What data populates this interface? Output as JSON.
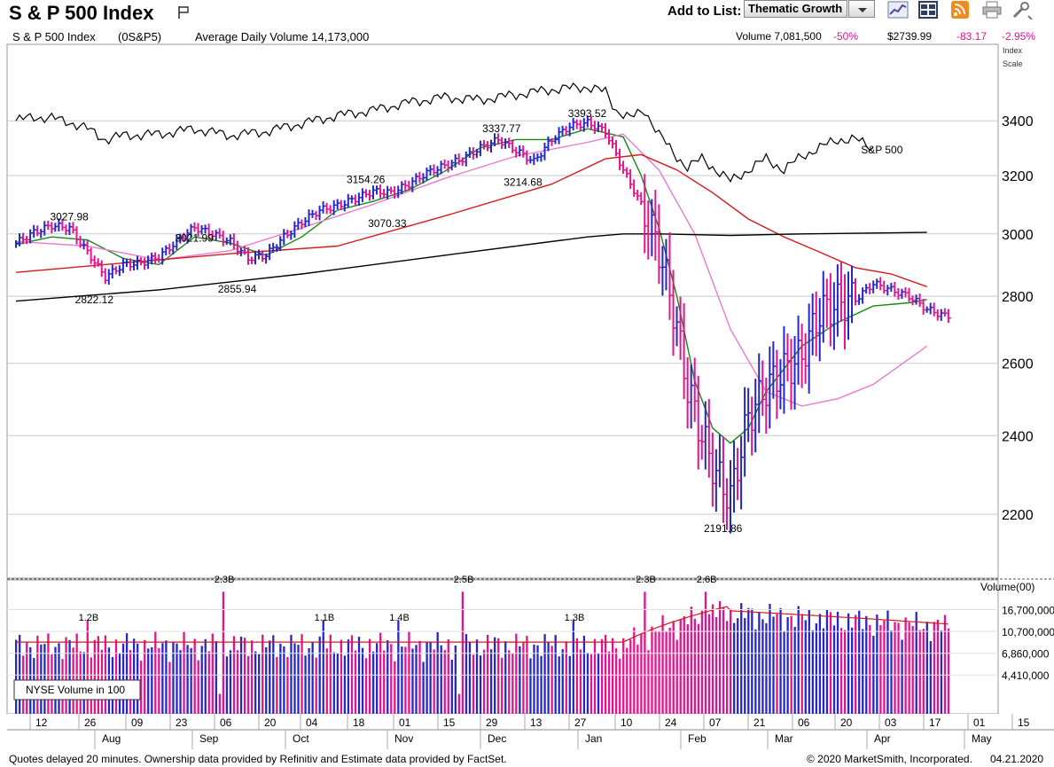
{
  "header": {
    "title": "S & P 500 Index",
    "add_to_list_label": "Add to List:",
    "list_selected": "Thematic Growth",
    "toolbar_icons": [
      "chart-icon",
      "grid-icon",
      "rss-icon",
      "print-icon",
      "tools-icon"
    ]
  },
  "info_bar": {
    "symbol": "S & P 500 Index",
    "ticker": "(0S&P5)",
    "avg_volume_text": "Average Daily Volume 14,173,000",
    "volume_text": "Volume 7,081,500",
    "volume_change": "-50%",
    "price": "$2739.99",
    "change": "-83.17",
    "change_pct": "-2.95%"
  },
  "footer": {
    "left_text": "Quotes delayed 20 minutes. Ownership data provided by Refinitiv and Estimate data provided by FactSet.",
    "copyright": "© 2020 MarketSmith, Incorporated.",
    "date": "04.21.2020"
  },
  "colors": {
    "up": "#2626c6",
    "down": "#e0148c",
    "ma10": "#138a13",
    "ma21": "#e87ad0",
    "ma50": "#d41a1a",
    "ma200": "#000000",
    "grid": "#c8c8c8"
  },
  "chart_data": [
    {
      "type": "candlestick",
      "title": "S & P 500 Index",
      "yaxis_scale": "log",
      "yaxis_label": "Index Scale",
      "ylim": [
        2050,
        3700
      ],
      "yticks": [
        2200,
        2400,
        2600,
        2800,
        3000,
        3200,
        3400
      ],
      "x_month_labels": [
        "Aug",
        "Sep",
        "Oct",
        "Nov",
        "Dec",
        "Jan",
        "Feb",
        "Mar",
        "Apr",
        "May"
      ],
      "x_day_labels": [
        "12",
        "26",
        "09",
        "23",
        "06",
        "20",
        "04",
        "18",
        "01",
        "15",
        "29",
        "13",
        "27",
        "10",
        "24",
        "07",
        "21",
        "06",
        "20",
        "03",
        "17",
        "01",
        "15"
      ],
      "price_series": {
        "x": [
          0,
          5,
          10,
          15,
          20,
          25,
          30,
          35,
          40,
          45,
          50,
          55,
          60,
          65,
          70,
          75,
          80,
          85,
          90,
          95,
          100,
          105,
          110,
          115,
          120,
          125,
          130,
          135,
          140,
          145,
          150,
          155,
          160,
          165,
          170,
          175,
          180,
          184,
          188,
          192,
          196,
          200,
          205,
          210,
          215,
          220,
          225,
          230,
          235,
          240,
          245,
          250,
          255,
          260,
          261
        ],
        "y": [
          2970,
          3005,
          3028,
          3020,
          2940,
          2860,
          2900,
          2905,
          2925,
          2975,
          3022,
          3000,
          2975,
          2920,
          2930,
          2990,
          3040,
          3080,
          3095,
          3120,
          3145,
          3140,
          3170,
          3210,
          3235,
          3260,
          3300,
          3330,
          3290,
          3250,
          3330,
          3380,
          3393,
          3360,
          3220,
          3100,
          2950,
          2760,
          2530,
          2400,
          2300,
          2240,
          2450,
          2530,
          2580,
          2620,
          2750,
          2780,
          2790,
          2840,
          2820,
          2800,
          2760,
          2740,
          2740
        ]
      },
      "moving_averages": [
        {
          "period": "10-day",
          "x": [
            0,
            10,
            20,
            30,
            40,
            50,
            60,
            70,
            80,
            90,
            100,
            110,
            120,
            130,
            140,
            150,
            160,
            170,
            175,
            180,
            185,
            190,
            195,
            200,
            205,
            210,
            220,
            230,
            240,
            250,
            255
          ],
          "y": [
            2965,
            2990,
            2980,
            2920,
            2900,
            2990,
            2970,
            2930,
            2990,
            3080,
            3110,
            3150,
            3215,
            3300,
            3330,
            3330,
            3370,
            3340,
            3200,
            3020,
            2800,
            2550,
            2420,
            2380,
            2420,
            2520,
            2650,
            2720,
            2770,
            2780,
            2790
          ]
        },
        {
          "period": "21-day",
          "x": [
            0,
            20,
            40,
            60,
            80,
            100,
            120,
            140,
            160,
            170,
            180,
            190,
            200,
            210,
            220,
            230,
            240,
            255
          ],
          "y": [
            2975,
            2960,
            2915,
            2945,
            3020,
            3100,
            3190,
            3270,
            3320,
            3350,
            3220,
            3000,
            2700,
            2520,
            2480,
            2500,
            2540,
            2650
          ]
        },
        {
          "period": "50-day",
          "x": [
            0,
            30,
            60,
            90,
            120,
            150,
            165,
            175,
            185,
            195,
            205,
            215,
            225,
            235,
            245,
            255
          ],
          "y": [
            2875,
            2905,
            2935,
            2960,
            3060,
            3170,
            3260,
            3275,
            3220,
            3140,
            3050,
            2990,
            2940,
            2890,
            2870,
            2830
          ]
        },
        {
          "period": "200-day",
          "x": [
            0,
            40,
            80,
            120,
            160,
            170,
            180,
            200,
            220,
            255
          ],
          "y": [
            2785,
            2820,
            2870,
            2930,
            2990,
            3000,
            3000,
            2995,
            3000,
            3005
          ]
        }
      ],
      "rs_line": {
        "name": "S&P 500",
        "x": [
          0,
          5,
          10,
          15,
          20,
          25,
          30,
          40,
          50,
          60,
          70,
          80,
          90,
          100,
          110,
          120,
          130,
          140,
          150,
          160,
          165,
          168,
          172,
          176,
          180,
          184,
          188,
          192,
          196,
          200,
          205,
          210,
          215,
          220,
          225,
          230,
          235,
          240
        ],
        "y": [
          3400,
          3415,
          3410,
          3395,
          3370,
          3330,
          3345,
          3350,
          3370,
          3345,
          3360,
          3390,
          3420,
          3440,
          3470,
          3490,
          3480,
          3500,
          3520,
          3530,
          3510,
          3440,
          3410,
          3440,
          3350,
          3280,
          3230,
          3260,
          3220,
          3180,
          3220,
          3260,
          3220,
          3270,
          3300,
          3330,
          3330,
          3300
        ]
      },
      "annotations": [
        {
          "label": "3027.98",
          "x": 15,
          "y": 3027.98
        },
        {
          "label": "2822.12",
          "x": 22,
          "y": 2822.12
        },
        {
          "label": "3021.99",
          "x": 50,
          "y": 3021.99
        },
        {
          "label": "2855.94",
          "x": 62,
          "y": 2855.94
        },
        {
          "label": "3154.26",
          "x": 98,
          "y": 3154.26
        },
        {
          "label": "3070.33",
          "x": 104,
          "y": 3070.33
        },
        {
          "label": "3337.77",
          "x": 136,
          "y": 3337.77
        },
        {
          "label": "3214.68",
          "x": 142,
          "y": 3214.68
        },
        {
          "label": "3393.52",
          "x": 160,
          "y": 3393.52
        },
        {
          "label": "2191.86",
          "x": 198,
          "y": 2191.86
        },
        {
          "label": "S&P 500",
          "x": 242,
          "y": 3280
        }
      ]
    },
    {
      "type": "bar",
      "title": "Volume(00)",
      "legend": "NYSE Volume in 100",
      "yticks": [
        "16,700,000",
        "10,700,000",
        "6,860,000",
        "4,410,000"
      ],
      "ytick_values": [
        16700000,
        10700000,
        6860000,
        4410000
      ],
      "annotations": [
        {
          "label": "1.2B",
          "x": 20
        },
        {
          "label": "2.3B",
          "x": 58
        },
        {
          "label": "1.1B",
          "x": 86
        },
        {
          "label": "1.4B",
          "x": 107
        },
        {
          "label": "2.5B",
          "x": 125
        },
        {
          "label": "1.3B",
          "x": 156
        },
        {
          "label": "2.3B",
          "x": 176
        },
        {
          "label": "2.6B",
          "x": 193
        }
      ]
    }
  ]
}
